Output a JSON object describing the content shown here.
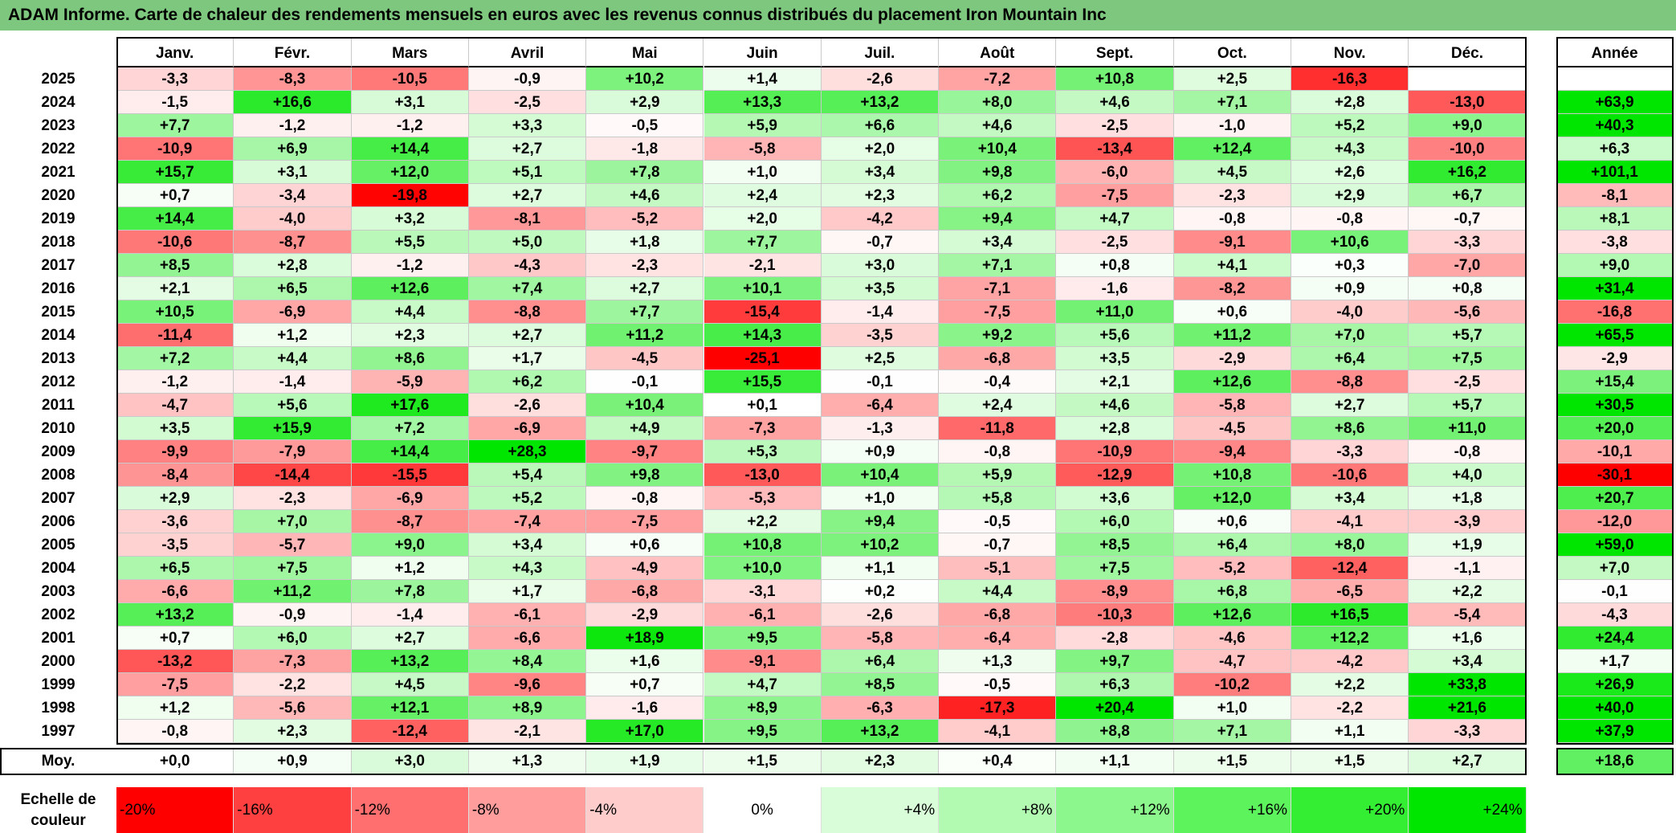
{
  "title": "ADAM Informe. Carte de chaleur des rendements mensuels en euros avec les revenus connus distribués du placement Iron Mountain Inc",
  "chart_data": {
    "type": "heatmap",
    "title": "ADAM Informe. Carte de chaleur des rendements mensuels en euros avec les revenus connus distribués du placement Iron Mountain Inc",
    "columns": [
      "Janv.",
      "Févr.",
      "Mars",
      "Avril",
      "Mai",
      "Juin",
      "Juil.",
      "Août",
      "Sept.",
      "Oct.",
      "Nov.",
      "Déc."
    ],
    "annual_header": "Année",
    "rows": [
      {
        "year": "2025",
        "values": [
          "-3,3",
          "-8,3",
          "-10,5",
          "-0,9",
          "+10,2",
          "+1,4",
          "-2,6",
          "-7,2",
          "+10,8",
          "+2,5",
          "-16,3",
          ""
        ],
        "annual": ""
      },
      {
        "year": "2024",
        "values": [
          "-1,5",
          "+16,6",
          "+3,1",
          "-2,5",
          "+2,9",
          "+13,3",
          "+13,2",
          "+8,0",
          "+4,6",
          "+7,1",
          "+2,8",
          "-13,0"
        ],
        "annual": "+63,9"
      },
      {
        "year": "2023",
        "values": [
          "+7,7",
          "-1,2",
          "-1,2",
          "+3,3",
          "-0,5",
          "+5,9",
          "+6,6",
          "+4,6",
          "-2,5",
          "-1,0",
          "+5,2",
          "+9,0"
        ],
        "annual": "+40,3"
      },
      {
        "year": "2022",
        "values": [
          "-10,9",
          "+6,9",
          "+14,4",
          "+2,7",
          "-1,8",
          "-5,8",
          "+2,0",
          "+10,4",
          "-13,4",
          "+12,4",
          "+4,3",
          "-10,0"
        ],
        "annual": "+6,3"
      },
      {
        "year": "2021",
        "values": [
          "+15,7",
          "+3,1",
          "+12,0",
          "+5,1",
          "+7,8",
          "+1,0",
          "+3,4",
          "+9,8",
          "-6,0",
          "+4,5",
          "+2,6",
          "+16,2"
        ],
        "annual": "+101,1"
      },
      {
        "year": "2020",
        "values": [
          "+0,7",
          "-3,4",
          "-19,8",
          "+2,7",
          "+4,6",
          "+2,4",
          "+2,3",
          "+6,2",
          "-7,5",
          "-2,3",
          "+2,9",
          "+6,7"
        ],
        "annual": "-8,1"
      },
      {
        "year": "2019",
        "values": [
          "+14,4",
          "-4,0",
          "+3,2",
          "-8,1",
          "-5,2",
          "+2,0",
          "-4,2",
          "+9,4",
          "+4,7",
          "-0,8",
          "-0,8",
          "-0,7"
        ],
        "annual": "+8,1"
      },
      {
        "year": "2018",
        "values": [
          "-10,6",
          "-8,7",
          "+5,5",
          "+5,0",
          "+1,8",
          "+7,7",
          "-0,7",
          "+3,4",
          "-2,5",
          "-9,1",
          "+10,6",
          "-3,3"
        ],
        "annual": "-3,8"
      },
      {
        "year": "2017",
        "values": [
          "+8,5",
          "+2,8",
          "-1,2",
          "-4,3",
          "-2,3",
          "-2,1",
          "+3,0",
          "+7,1",
          "+0,8",
          "+4,1",
          "+0,3",
          "-7,0"
        ],
        "annual": "+9,0"
      },
      {
        "year": "2016",
        "values": [
          "+2,1",
          "+6,5",
          "+12,6",
          "+7,4",
          "+2,7",
          "+10,1",
          "+3,5",
          "-7,1",
          "-1,6",
          "-8,2",
          "+0,9",
          "+0,8"
        ],
        "annual": "+31,4"
      },
      {
        "year": "2015",
        "values": [
          "+10,5",
          "-6,9",
          "+4,4",
          "-8,8",
          "+7,7",
          "-15,4",
          "-1,4",
          "-7,5",
          "+11,0",
          "+0,6",
          "-4,0",
          "-5,6"
        ],
        "annual": "-16,8"
      },
      {
        "year": "2014",
        "values": [
          "-11,4",
          "+1,2",
          "+2,3",
          "+2,7",
          "+11,2",
          "+14,3",
          "-3,5",
          "+9,2",
          "+5,6",
          "+11,2",
          "+7,0",
          "+5,7"
        ],
        "annual": "+65,5"
      },
      {
        "year": "2013",
        "values": [
          "+7,2",
          "+4,4",
          "+8,6",
          "+1,7",
          "-4,5",
          "-25,1",
          "+2,5",
          "-6,8",
          "+3,5",
          "-2,9",
          "+6,4",
          "+7,5"
        ],
        "annual": "-2,9"
      },
      {
        "year": "2012",
        "values": [
          "-1,2",
          "-1,4",
          "-5,9",
          "+6,2",
          "-0,1",
          "+15,5",
          "-0,1",
          "-0,4",
          "+2,1",
          "+12,6",
          "-8,8",
          "-2,5"
        ],
        "annual": "+15,4"
      },
      {
        "year": "2011",
        "values": [
          "-4,7",
          "+5,6",
          "+17,6",
          "-2,6",
          "+10,4",
          "+0,1",
          "-6,4",
          "+2,4",
          "+4,6",
          "-5,8",
          "+2,7",
          "+5,7"
        ],
        "annual": "+30,5"
      },
      {
        "year": "2010",
        "values": [
          "+3,5",
          "+15,9",
          "+7,2",
          "-6,9",
          "+4,9",
          "-7,3",
          "-1,3",
          "-11,8",
          "+2,8",
          "-4,5",
          "+8,6",
          "+11,0"
        ],
        "annual": "+20,0"
      },
      {
        "year": "2009",
        "values": [
          "-9,9",
          "-7,9",
          "+14,4",
          "+28,3",
          "-9,7",
          "+5,3",
          "+0,9",
          "-0,8",
          "-10,9",
          "-9,4",
          "-3,3",
          "-0,8"
        ],
        "annual": "-10,1"
      },
      {
        "year": "2008",
        "values": [
          "-8,4",
          "-14,4",
          "-15,5",
          "+5,4",
          "+9,8",
          "-13,0",
          "+10,4",
          "+5,9",
          "-12,9",
          "+10,8",
          "-10,6",
          "+4,0"
        ],
        "annual": "-30,1"
      },
      {
        "year": "2007",
        "values": [
          "+2,9",
          "-2,3",
          "-6,9",
          "+5,2",
          "-0,8",
          "-5,3",
          "+1,0",
          "+5,8",
          "+3,6",
          "+12,0",
          "+3,4",
          "+1,8"
        ],
        "annual": "+20,7"
      },
      {
        "year": "2006",
        "values": [
          "-3,6",
          "+7,0",
          "-8,7",
          "-7,4",
          "-7,5",
          "+2,2",
          "+9,4",
          "-0,5",
          "+6,0",
          "+0,6",
          "-4,1",
          "-3,9"
        ],
        "annual": "-12,0"
      },
      {
        "year": "2005",
        "values": [
          "-3,5",
          "-5,7",
          "+9,0",
          "+3,4",
          "+0,6",
          "+10,8",
          "+10,2",
          "-0,7",
          "+8,5",
          "+6,4",
          "+8,0",
          "+1,9"
        ],
        "annual": "+59,0"
      },
      {
        "year": "2004",
        "values": [
          "+6,5",
          "+7,5",
          "+1,2",
          "+4,3",
          "-4,9",
          "+10,0",
          "+1,1",
          "-5,1",
          "+7,5",
          "-5,2",
          "-12,4",
          "-1,1"
        ],
        "annual": "+7,0"
      },
      {
        "year": "2003",
        "values": [
          "-6,6",
          "+11,2",
          "+7,8",
          "+1,7",
          "-6,8",
          "-3,1",
          "+0,2",
          "+4,4",
          "-8,9",
          "+6,8",
          "-6,5",
          "+2,2"
        ],
        "annual": "-0,1"
      },
      {
        "year": "2002",
        "values": [
          "+13,2",
          "-0,9",
          "-1,4",
          "-6,1",
          "-2,9",
          "-6,1",
          "-2,6",
          "-6,8",
          "-10,3",
          "+12,6",
          "+16,5",
          "-5,4"
        ],
        "annual": "-4,3"
      },
      {
        "year": "2001",
        "values": [
          "+0,7",
          "+6,0",
          "+2,7",
          "-6,6",
          "+18,9",
          "+9,5",
          "-5,8",
          "-6,4",
          "-2,8",
          "-4,6",
          "+12,2",
          "+1,6"
        ],
        "annual": "+24,4"
      },
      {
        "year": "2000",
        "values": [
          "-13,2",
          "-7,3",
          "+13,2",
          "+8,4",
          "+1,6",
          "-9,1",
          "+6,4",
          "+1,3",
          "+9,7",
          "-4,7",
          "-4,2",
          "+3,4"
        ],
        "annual": "+1,7"
      },
      {
        "year": "1999",
        "values": [
          "-7,5",
          "-2,2",
          "+4,5",
          "-9,6",
          "+0,7",
          "+4,7",
          "+8,5",
          "-0,5",
          "+6,3",
          "-10,2",
          "+2,2",
          "+33,8"
        ],
        "annual": "+26,9"
      },
      {
        "year": "1998",
        "values": [
          "+1,2",
          "-5,6",
          "+12,1",
          "+8,9",
          "-1,6",
          "+8,9",
          "-6,3",
          "-17,3",
          "+20,4",
          "+1,0",
          "-2,2",
          "+21,6"
        ],
        "annual": "+40,0"
      },
      {
        "year": "1997",
        "values": [
          "-0,8",
          "+2,3",
          "-12,4",
          "-2,1",
          "+17,0",
          "+9,5",
          "+13,2",
          "-4,1",
          "+8,8",
          "+7,1",
          "+1,1",
          "-3,3"
        ],
        "annual": "+37,9"
      }
    ],
    "average": {
      "label": "Moy.",
      "values": [
        "+0,0",
        "+0,9",
        "+3,0",
        "+1,3",
        "+1,9",
        "+1,5",
        "+2,3",
        "+0,4",
        "+1,1",
        "+1,5",
        "+1,5",
        "+2,7"
      ],
      "annual": "+18,6"
    },
    "color_scale": {
      "label": "Echelle de couleur",
      "steps": [
        {
          "label": "-20%",
          "color": "#ff0000"
        },
        {
          "label": "-16%",
          "color": "#ff4040"
        },
        {
          "label": "-12%",
          "color": "#ff6f6f"
        },
        {
          "label": "-8%",
          "color": "#ff9c9c"
        },
        {
          "label": "-4%",
          "color": "#ffcccc"
        },
        {
          "label": "0%",
          "color": "#ffffff"
        },
        {
          "label": "+4%",
          "color": "#d8fdd8"
        },
        {
          "label": "+8%",
          "color": "#b2fab2"
        },
        {
          "label": "+12%",
          "color": "#8cf78c"
        },
        {
          "label": "+16%",
          "color": "#5df35d"
        },
        {
          "label": "+20%",
          "color": "#33ee33"
        },
        {
          "label": "+24%",
          "color": "#00e600"
        }
      ]
    },
    "colors": {
      "title_bar": "#7ec77e",
      "negative_max": "#ff0000",
      "positive_max": "#00e600",
      "zero": "#ffffff"
    }
  }
}
